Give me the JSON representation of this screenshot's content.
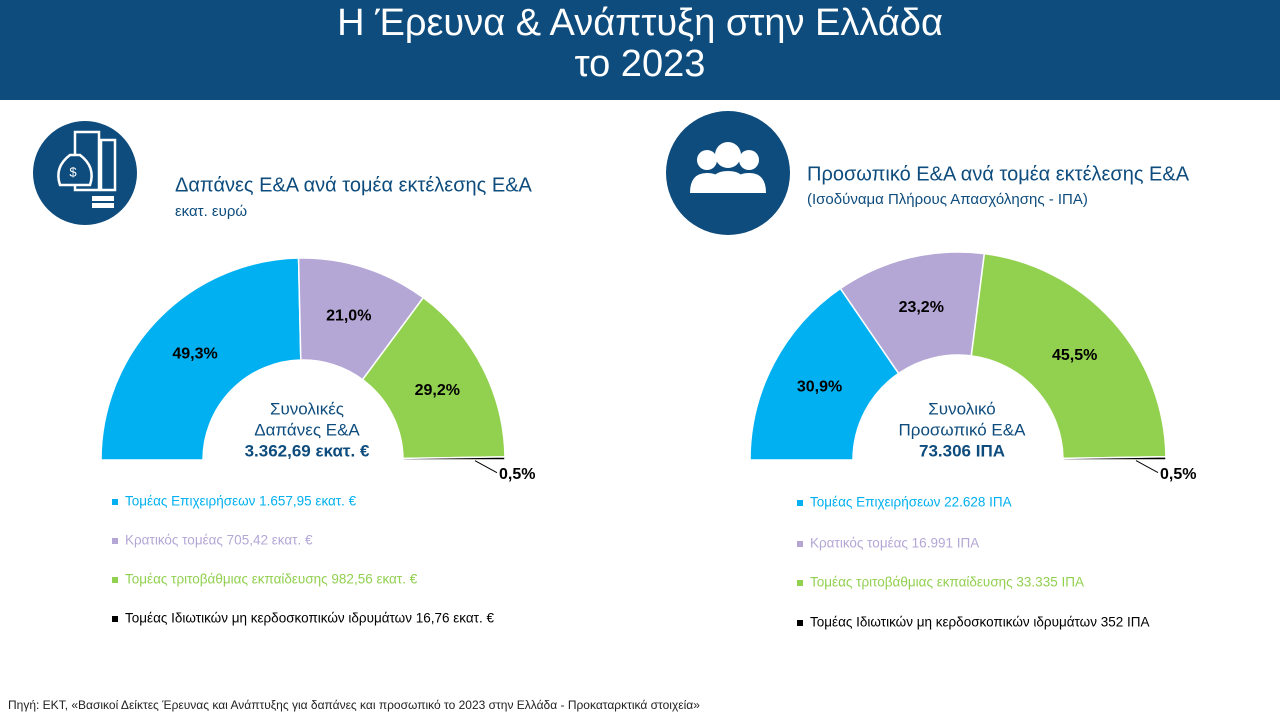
{
  "header": {
    "title_lines": [
      "Η Έρευνα & Ανάπτυξη στην Ελλάδα",
      "το 2023"
    ]
  },
  "chart_data": [
    {
      "type": "semi-donut",
      "title": "Δαπάνες Ε&Α ανά τομέα εκτέλεσης Ε&Α",
      "subtitle": "εκατ. ευρώ",
      "categories": [
        "Τομέας Επιχειρήσεων 1.657,95 εκατ. €",
        "Κρατικός τομέας 705,42 εκατ. €",
        "Τομέας τριτοβάθμιας εκπαίδευσης 982,56 εκατ. €",
        "Τομέας Ιδιωτικών μη κερδοσκοπικών ιδρυμάτων 16,76 εκατ. €"
      ],
      "values": [
        49.3,
        21.0,
        29.2,
        0.5
      ],
      "value_labels": [
        "49,3%",
        "21,0%",
        "29,2%",
        "0,5%"
      ],
      "colors": [
        "#00b0f0",
        "#b4a7d6",
        "#92d050",
        "#000000"
      ],
      "center_label": [
        "Συνολικές",
        "Δαπάνες Ε&Α",
        "3.362,69 εκατ. €"
      ]
    },
    {
      "type": "semi-donut",
      "title": "Προσωπικό Ε&Α ανά τομέα εκτέλεσης Ε&Α",
      "subtitle": "(Ισοδύναμα Πλήρους Απασχόλησης - ΙΠΑ)",
      "categories": [
        "Τομέας Επιχειρήσεων 22.628 ΙΠΑ",
        "Κρατικός τομέας 16.991 ΙΠΑ",
        "Τομέας τριτοβάθμιας εκπαίδευσης 33.335 ΙΠΑ",
        "Τομέας Ιδιωτικών μη κερδοσκοπικών ιδρυμάτων 352 ΙΠΑ"
      ],
      "values": [
        30.9,
        23.2,
        45.5,
        0.5
      ],
      "value_labels": [
        "30,9%",
        "23,2%",
        "45,5%",
        "0,5%"
      ],
      "colors": [
        "#00b0f0",
        "#b4a7d6",
        "#92d050",
        "#000000"
      ],
      "center_label": [
        "Συνολικό",
        "Προσωπικό Ε&Α",
        "73.306 ΙΠΑ"
      ]
    }
  ],
  "source": "Πηγή: ΕΚΤ, «Βασικοί Δείκτες Έρευνας και Ανάπτυξης για δαπάνες και προσωπικό το 2023 στην Ελλάδα - Προκαταρκτικά στοιχεία»"
}
